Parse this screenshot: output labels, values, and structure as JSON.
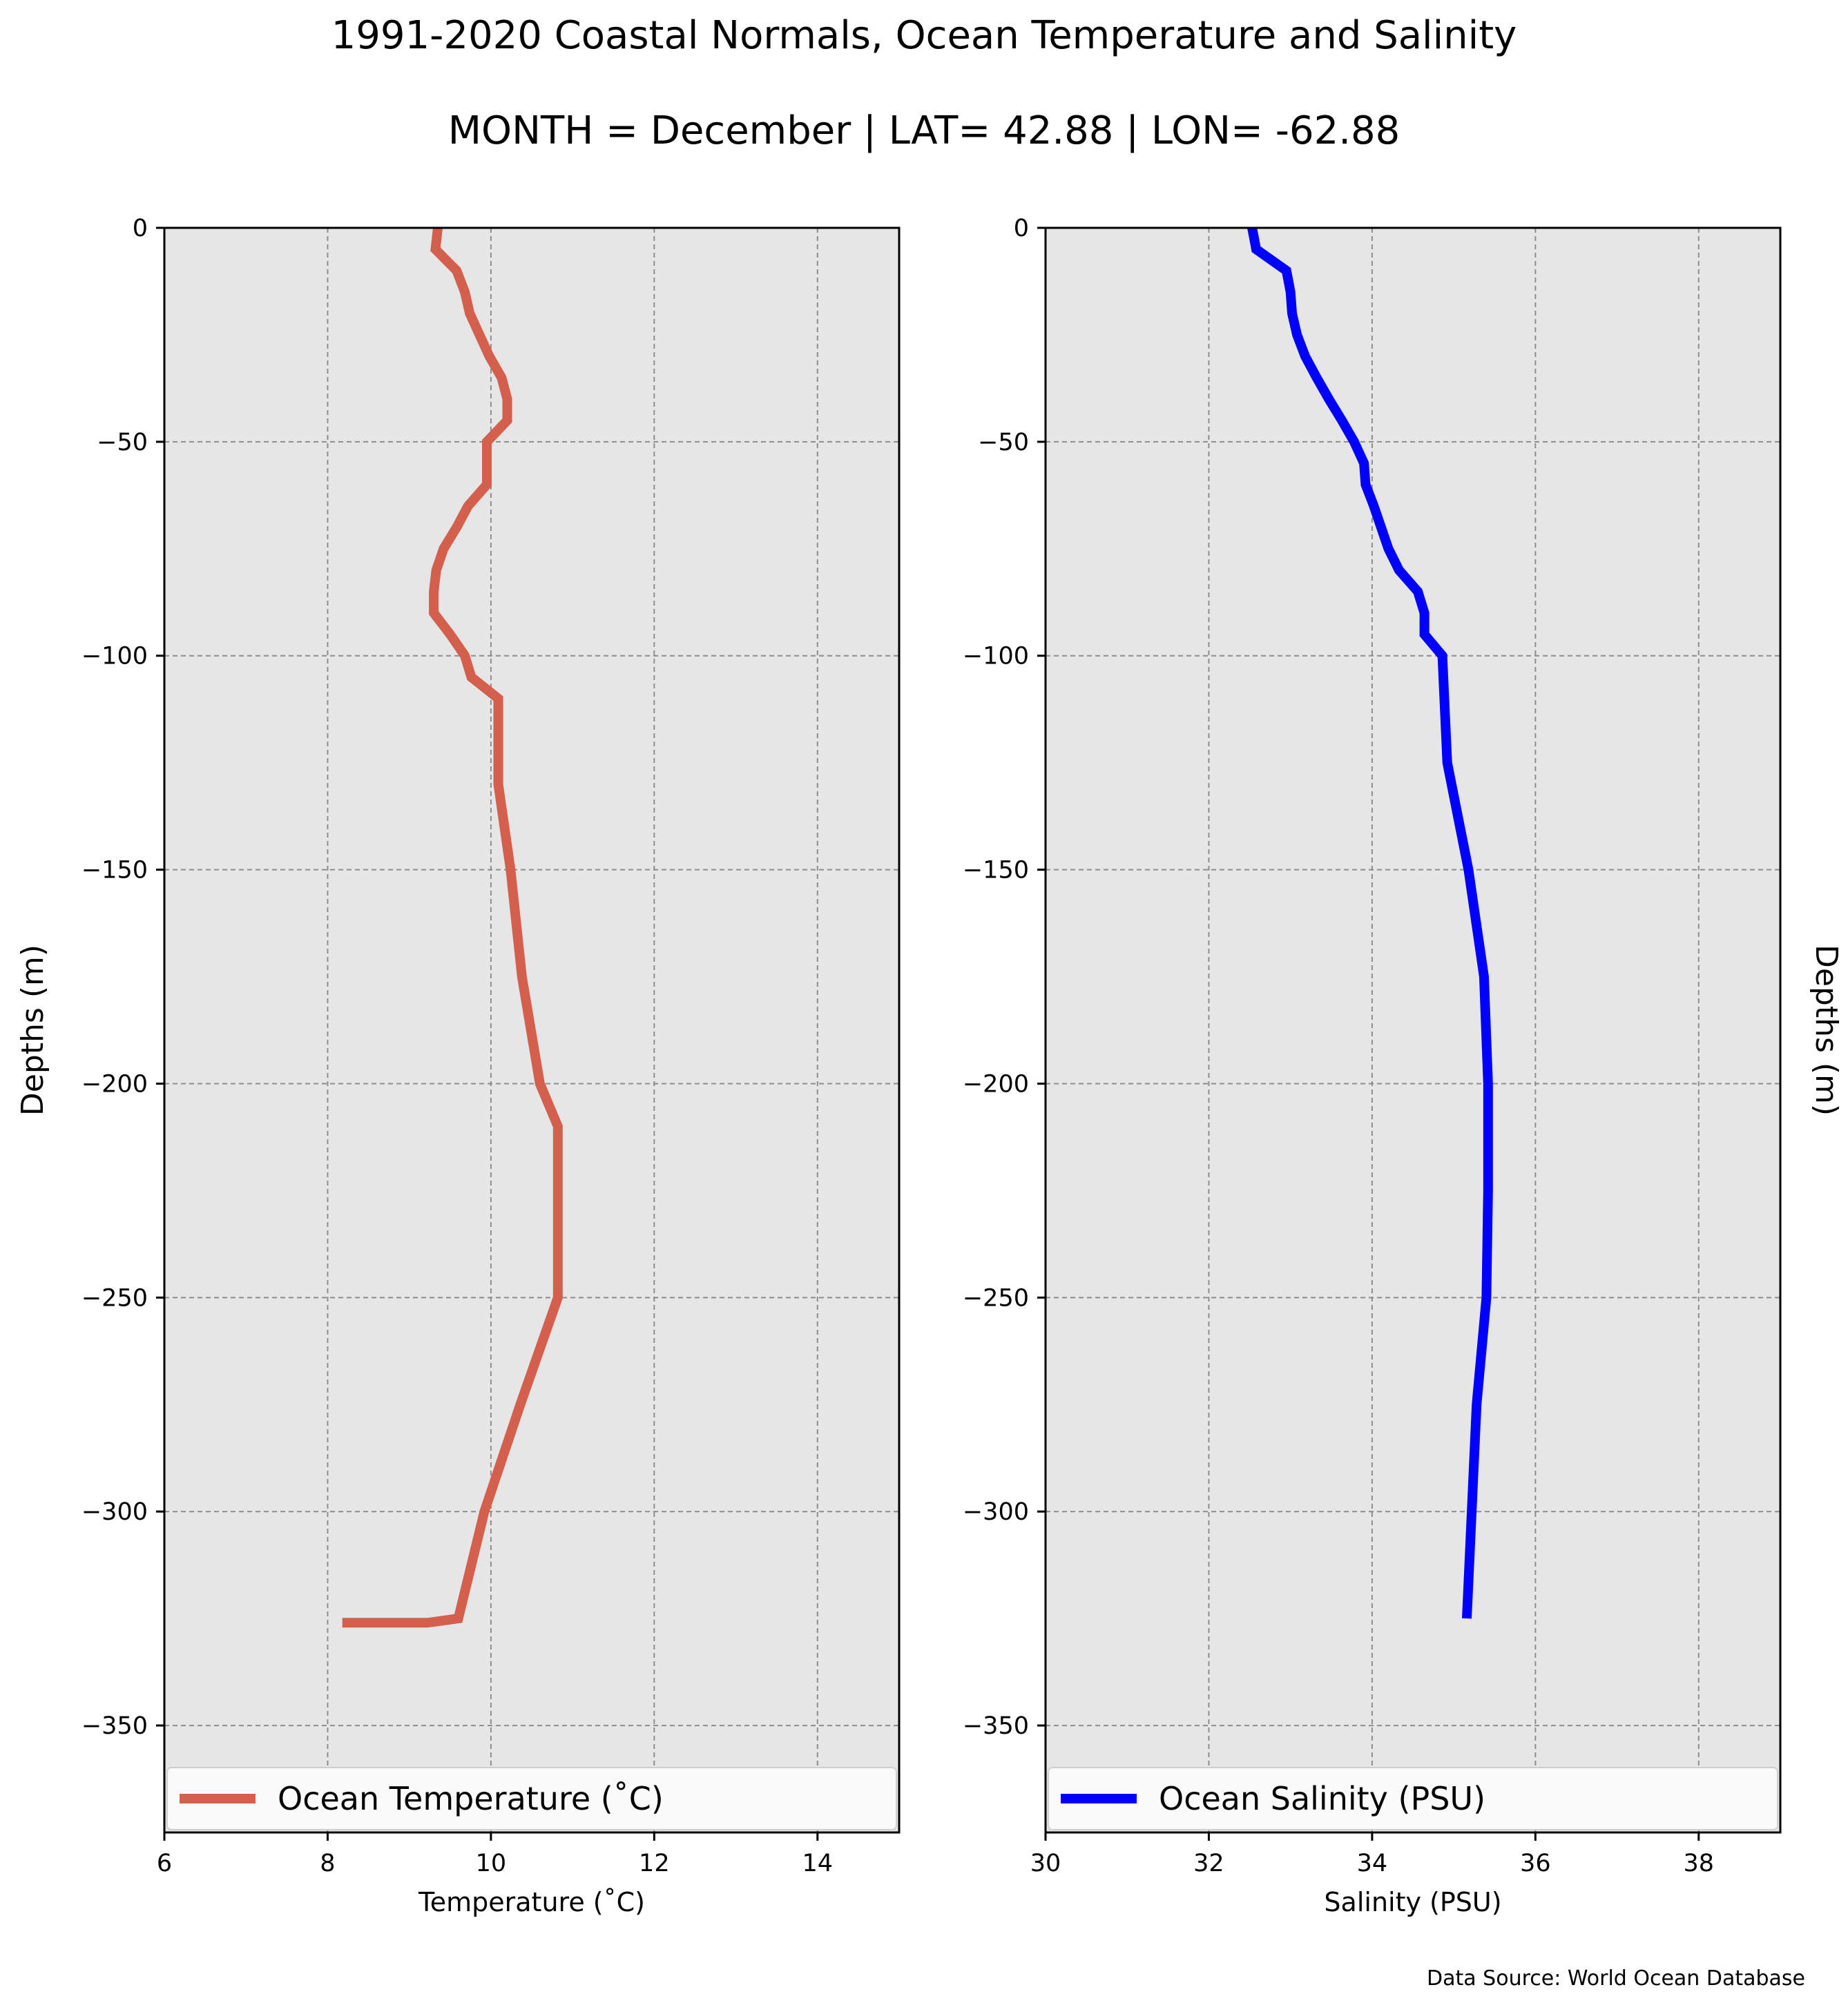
{
  "title": "1991-2020 Coastal Normals, Ocean Temperature and Salinity",
  "subtitle": "MONTH = December | LAT= 42.88 | LON= -62.88",
  "source_note": "Data Source: World Ocean Database",
  "chart_data": [
    {
      "type": "line",
      "xlabel": "Temperature ($^\\circ$C)",
      "xlabel_display": "Temperature (˚C)",
      "ylabel": "Depths (m)",
      "ylabel_side": "left",
      "xlim": [
        6,
        15
      ],
      "ylim": [
        -375,
        0
      ],
      "xticks": [
        6,
        8,
        10,
        12,
        14
      ],
      "yticks": [
        0,
        -50,
        -100,
        -150,
        -200,
        -250,
        -300,
        -350
      ],
      "grid": true,
      "legend": "lower center",
      "background": "#e6e6e6",
      "series": [
        {
          "name": "Ocean Temperature (˚C)",
          "color": "#d35f4c",
          "x": [
            9.35,
            9.32,
            9.58,
            9.68,
            9.74,
            9.98,
            10.13,
            10.2,
            10.2,
            9.95,
            9.95,
            9.95,
            9.72,
            9.58,
            9.42,
            9.33,
            9.3,
            9.3,
            9.5,
            9.68,
            9.76,
            10.09,
            10.09,
            10.09,
            10.09,
            10.09,
            10.24,
            10.38,
            10.6,
            10.82,
            10.82,
            10.82,
            10.82,
            10.36,
            9.92,
            9.6,
            9.22,
            8.7,
            8.18
          ],
          "y": [
            0,
            -5,
            -10,
            -15,
            -20,
            -30,
            -35,
            -40,
            -45,
            -50,
            -55,
            -60,
            -65,
            -70,
            -75,
            -80,
            -85,
            -90,
            -95,
            -100,
            -105,
            -110,
            -115,
            -120,
            -125,
            -130,
            -150,
            -175,
            -200,
            -210,
            -220,
            -225,
            -250,
            -275,
            -300,
            -325,
            -326,
            -326,
            -326
          ]
        }
      ]
    },
    {
      "type": "line",
      "xlabel": "Salinity (PSU)",
      "ylabel": "Depths (m)",
      "ylabel_side": "right",
      "xlim": [
        30,
        39
      ],
      "ylim": [
        -375,
        0
      ],
      "xticks": [
        30,
        32,
        34,
        36,
        38
      ],
      "yticks": [
        0,
        -50,
        -100,
        -150,
        -200,
        -250,
        -300,
        -350
      ],
      "grid": true,
      "legend": "lower center",
      "background": "#e6e6e6",
      "series": [
        {
          "name": "Ocean Salinity (PSU)",
          "color": "#0000ff",
          "x": [
            32.53,
            32.58,
            32.95,
            33.0,
            33.02,
            33.08,
            33.18,
            33.32,
            33.47,
            33.63,
            33.78,
            33.9,
            33.92,
            34.02,
            34.11,
            34.2,
            34.33,
            34.56,
            34.64,
            34.64,
            34.86,
            34.92,
            35.18,
            35.37,
            35.42,
            35.42,
            35.4,
            35.28,
            35.22,
            35.16
          ],
          "y": [
            0,
            -5,
            -10,
            -15,
            -20,
            -25,
            -30,
            -35,
            -40,
            -45,
            -50,
            -55,
            -60,
            -65,
            -70,
            -75,
            -80,
            -85,
            -90,
            -95,
            -100,
            -125,
            -150,
            -175,
            -200,
            -225,
            -250,
            -275,
            -300,
            -325
          ]
        }
      ]
    }
  ]
}
